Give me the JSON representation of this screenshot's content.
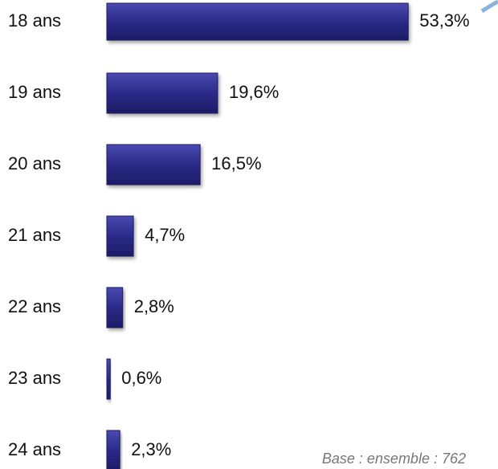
{
  "chart_data": {
    "type": "bar",
    "orientation": "horizontal",
    "categories": [
      "18 ans",
      "19 ans",
      "20 ans",
      "21 ans",
      "22 ans",
      "23 ans",
      "24 ans"
    ],
    "values": [
      53.3,
      19.6,
      16.5,
      4.7,
      2.8,
      0.6,
      2.3
    ],
    "value_labels": [
      "53,3%",
      "19,6%",
      "16,5%",
      "4,7%",
      "2,8%",
      "0,6%",
      "2,3%"
    ],
    "color": "#2a2a88",
    "annotation": "Base : ensemble : 762"
  }
}
